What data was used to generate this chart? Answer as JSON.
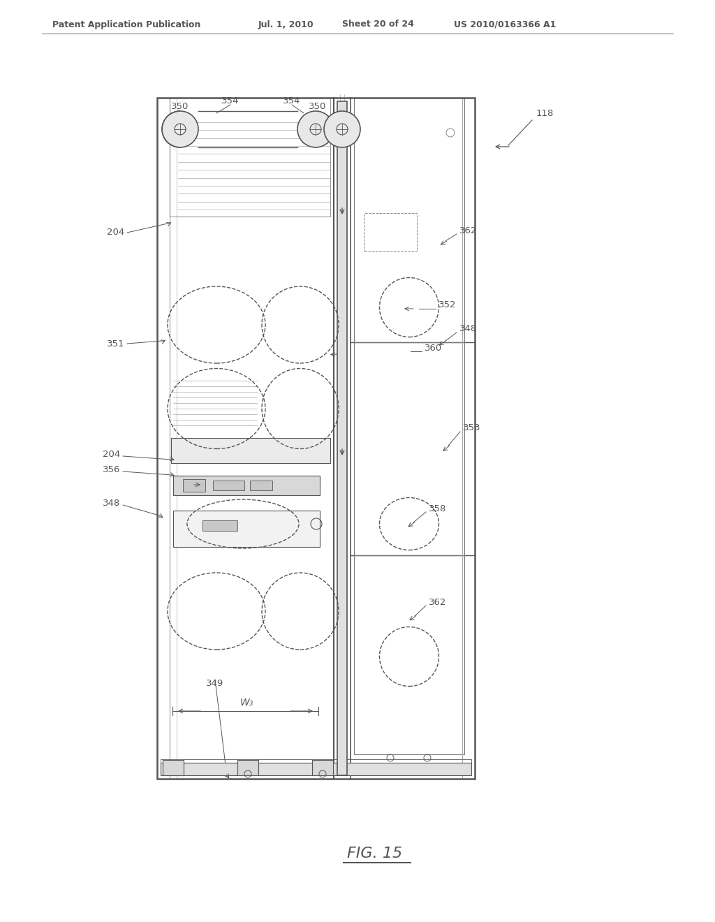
{
  "bg_color": "#ffffff",
  "line_color": "#555555",
  "light_line_color": "#aaaaaa",
  "text_color": "#555555",
  "header_text": "Patent Application Publication",
  "header_date": "Jul. 1, 2010",
  "header_sheet": "Sheet 20 of 24",
  "header_patent": "US 2010/0163366 A1",
  "fig_label": "FIG. 15"
}
